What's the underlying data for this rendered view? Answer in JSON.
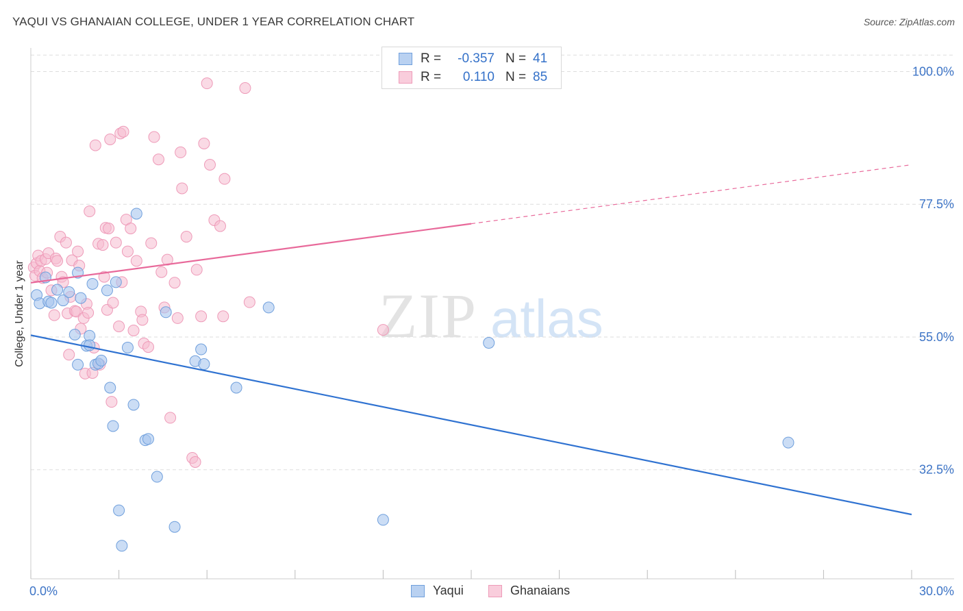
{
  "title": "YAQUI VS GHANAIAN COLLEGE, UNDER 1 YEAR CORRELATION CHART",
  "source": "Source: ZipAtlas.com",
  "watermark": {
    "zip": "ZIP",
    "atlas": "atlas"
  },
  "colors": {
    "yaqui_fill": "#a9c6ef",
    "yaqui_stroke": "#6f9fdc",
    "yaqui_line": "#2f72d1",
    "ghana_fill": "#f6bcd0",
    "ghana_stroke": "#ee9ab8",
    "ghana_line": "#e8699a",
    "axis_label": "#3d74c6",
    "grid": "#dddddd"
  },
  "legend": {
    "rows": [
      {
        "r_label": "R =",
        "r_value": "-0.357",
        "n_label": "N =",
        "n_value": "41"
      },
      {
        "r_label": "R =",
        "r_value": "0.110",
        "n_label": "N =",
        "n_value": "85"
      }
    ],
    "series_names": [
      "Yaqui",
      "Ghanaians"
    ]
  },
  "chart_data": {
    "type": "scatter",
    "title": "YAQUI VS GHANAIAN COLLEGE, UNDER 1 YEAR CORRELATION CHART",
    "xlabel": "",
    "ylabel": "College, Under 1 year",
    "xlim": [
      0,
      30
    ],
    "ylim": [
      14,
      104
    ],
    "x_tick_labels": [
      "0.0%",
      "30.0%"
    ],
    "y_ticks": [
      32.5,
      55.0,
      77.5,
      100.0
    ],
    "y_tick_labels": [
      "32.5%",
      "55.0%",
      "77.5%",
      "100.0%"
    ],
    "series": [
      {
        "name": "Yaqui",
        "points": [
          [
            0.2,
            62.1
          ],
          [
            0.3,
            60.7
          ],
          [
            0.6,
            61.0
          ],
          [
            0.5,
            65.1
          ],
          [
            0.9,
            63.0
          ],
          [
            1.1,
            61.2
          ],
          [
            1.3,
            62.6
          ],
          [
            1.5,
            55.4
          ],
          [
            1.6,
            65.9
          ],
          [
            1.7,
            61.6
          ],
          [
            1.9,
            53.5
          ],
          [
            2.0,
            55.2
          ],
          [
            2.1,
            64.0
          ],
          [
            2.2,
            50.3
          ],
          [
            2.3,
            50.5
          ],
          [
            2.4,
            51.0
          ],
          [
            2.6,
            62.9
          ],
          [
            2.7,
            46.4
          ],
          [
            2.8,
            39.9
          ],
          [
            2.9,
            64.3
          ],
          [
            3.0,
            25.6
          ],
          [
            3.1,
            19.6
          ],
          [
            3.3,
            53.2
          ],
          [
            3.5,
            43.5
          ],
          [
            3.6,
            75.9
          ],
          [
            3.9,
            37.5
          ],
          [
            4.0,
            37.7
          ],
          [
            4.3,
            31.3
          ],
          [
            4.6,
            59.2
          ],
          [
            4.9,
            22.8
          ],
          [
            5.6,
            50.9
          ],
          [
            5.8,
            52.9
          ],
          [
            5.9,
            50.4
          ],
          [
            7.0,
            46.4
          ],
          [
            8.1,
            60.0
          ],
          [
            12.0,
            24.0
          ],
          [
            15.6,
            54.0
          ],
          [
            25.8,
            37.1
          ],
          [
            0.7,
            60.8
          ],
          [
            2.0,
            53.6
          ],
          [
            1.6,
            50.3
          ]
        ]
      },
      {
        "name": "Ghanaians",
        "points": [
          [
            0.1,
            66.8
          ],
          [
            0.15,
            65.4
          ],
          [
            0.2,
            67.5
          ],
          [
            0.25,
            68.8
          ],
          [
            0.3,
            66.2
          ],
          [
            0.35,
            67.9
          ],
          [
            0.4,
            65.0
          ],
          [
            0.5,
            68.2
          ],
          [
            0.55,
            65.9
          ],
          [
            0.6,
            69.2
          ],
          [
            0.7,
            62.9
          ],
          [
            0.8,
            58.7
          ],
          [
            0.85,
            68.3
          ],
          [
            0.9,
            67.9
          ],
          [
            1.0,
            72.0
          ],
          [
            1.05,
            65.2
          ],
          [
            1.1,
            64.3
          ],
          [
            1.2,
            71.0
          ],
          [
            1.25,
            59.0
          ],
          [
            1.3,
            52.0
          ],
          [
            1.35,
            61.8
          ],
          [
            1.4,
            68.0
          ],
          [
            1.5,
            59.4
          ],
          [
            1.55,
            59.3
          ],
          [
            1.6,
            69.5
          ],
          [
            1.65,
            67.1
          ],
          [
            1.7,
            56.4
          ],
          [
            1.8,
            58.2
          ],
          [
            1.85,
            48.8
          ],
          [
            1.9,
            60.6
          ],
          [
            1.95,
            59.1
          ],
          [
            2.0,
            76.3
          ],
          [
            2.1,
            48.9
          ],
          [
            2.15,
            53.2
          ],
          [
            2.2,
            87.5
          ],
          [
            2.3,
            70.8
          ],
          [
            2.35,
            50.3
          ],
          [
            2.45,
            70.6
          ],
          [
            2.5,
            65.2
          ],
          [
            2.55,
            73.5
          ],
          [
            2.6,
            59.6
          ],
          [
            2.65,
            73.4
          ],
          [
            2.7,
            88.5
          ],
          [
            2.75,
            44.0
          ],
          [
            2.8,
            60.8
          ],
          [
            2.9,
            71.0
          ],
          [
            3.0,
            56.8
          ],
          [
            3.05,
            89.5
          ],
          [
            3.15,
            89.8
          ],
          [
            3.25,
            74.9
          ],
          [
            3.3,
            69.5
          ],
          [
            3.4,
            73.4
          ],
          [
            3.5,
            56.1
          ],
          [
            3.6,
            67.9
          ],
          [
            3.75,
            59.3
          ],
          [
            3.8,
            57.9
          ],
          [
            3.85,
            53.9
          ],
          [
            4.0,
            53.3
          ],
          [
            4.1,
            70.9
          ],
          [
            4.2,
            88.9
          ],
          [
            4.35,
            85.1
          ],
          [
            4.45,
            66.0
          ],
          [
            4.55,
            60.0
          ],
          [
            4.65,
            68.1
          ],
          [
            4.75,
            41.3
          ],
          [
            4.9,
            64.2
          ],
          [
            5.0,
            58.2
          ],
          [
            5.1,
            86.3
          ],
          [
            5.15,
            80.2
          ],
          [
            5.3,
            72.0
          ],
          [
            5.5,
            34.5
          ],
          [
            5.6,
            33.8
          ],
          [
            5.65,
            66.4
          ],
          [
            5.8,
            58.5
          ],
          [
            6.0,
            98.0
          ],
          [
            5.9,
            87.8
          ],
          [
            6.1,
            84.2
          ],
          [
            6.25,
            74.8
          ],
          [
            6.45,
            73.8
          ],
          [
            6.55,
            58.5
          ],
          [
            6.6,
            81.8
          ],
          [
            7.3,
            97.2
          ],
          [
            7.45,
            60.9
          ],
          [
            12.0,
            56.2
          ],
          [
            3.1,
            64.3
          ]
        ]
      }
    ],
    "trend_lines": [
      {
        "series": "Yaqui",
        "x": [
          0,
          30
        ],
        "y": [
          55.3,
          24.9
        ],
        "style": "solid"
      },
      {
        "series": "Ghanaians",
        "x": [
          0,
          15
        ],
        "y": [
          64.2,
          74.2
        ],
        "style": "solid"
      },
      {
        "series": "Ghanaians",
        "x": [
          15,
          30
        ],
        "y": [
          74.2,
          84.2
        ],
        "style": "dashed"
      }
    ]
  }
}
